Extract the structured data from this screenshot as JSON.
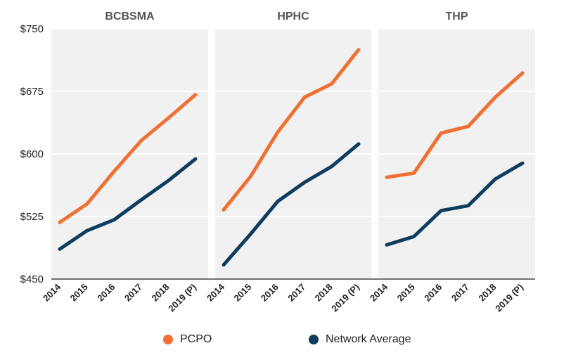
{
  "chart_data": {
    "type": "line",
    "ylim": [
      450,
      750
    ],
    "yticks": [
      450,
      525,
      600,
      675,
      750
    ],
    "ytick_labels": [
      "$450",
      "$525",
      "$600",
      "$675",
      "$750"
    ],
    "categories": [
      "2014",
      "2015",
      "2016",
      "2017",
      "2018",
      "2019 (P)"
    ],
    "grid": true,
    "legend": {
      "placement": "bottom",
      "entries": [
        {
          "name": "PCPO",
          "color": "#f07034"
        },
        {
          "name": "Network Average",
          "color": "#0e3d5f"
        }
      ]
    },
    "panels": [
      {
        "title": "BCBSMA",
        "series": [
          {
            "name": "PCPO",
            "color": "#f07034",
            "values": [
              518,
              540,
              579,
              616,
              643,
              671
            ]
          },
          {
            "name": "Network Average",
            "color": "#0e3d5f",
            "values": [
              486,
              508,
              521,
              545,
              568,
              594
            ]
          }
        ]
      },
      {
        "title": "HPHC",
        "series": [
          {
            "name": "PCPO",
            "color": "#f07034",
            "values": [
              533,
              573,
              626,
              668,
              684,
              725
            ]
          },
          {
            "name": "Network Average",
            "color": "#0e3d5f",
            "values": [
              467,
              504,
              543,
              566,
              585,
              612
            ]
          }
        ]
      },
      {
        "title": "THP",
        "series": [
          {
            "name": "PCPO",
            "color": "#f07034",
            "values": [
              572,
              577,
              625,
              633,
              668,
              697
            ]
          },
          {
            "name": "Network Average",
            "color": "#0e3d5f",
            "values": [
              491,
              501,
              532,
              538,
              570,
              589
            ]
          }
        ]
      }
    ]
  }
}
